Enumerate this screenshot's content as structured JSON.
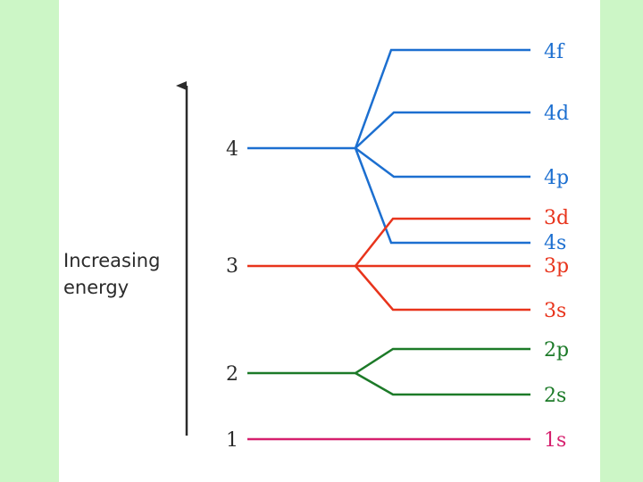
{
  "axis": {
    "label_line1": "Increasing",
    "label_line2": "energy"
  },
  "levels": [
    {
      "n": "1",
      "color": "#d6206e"
    },
    {
      "n": "2",
      "color": "#1c7a28"
    },
    {
      "n": "3",
      "color": "#e8341c"
    },
    {
      "n": "4",
      "color": "#1c6fd0"
    }
  ],
  "sublevels": [
    {
      "name": "1s",
      "color": "#d6206e"
    },
    {
      "name": "2s",
      "color": "#1c7a28"
    },
    {
      "name": "2p",
      "color": "#1c7a28"
    },
    {
      "name": "3s",
      "color": "#e8341c"
    },
    {
      "name": "3p",
      "color": "#e8341c"
    },
    {
      "name": "4s",
      "color": "#1c6fd0"
    },
    {
      "name": "3d",
      "color": "#e8341c"
    },
    {
      "name": "4p",
      "color": "#1c6fd0"
    },
    {
      "name": "4d",
      "color": "#1c6fd0"
    },
    {
      "name": "4f",
      "color": "#1c6fd0"
    }
  ]
}
